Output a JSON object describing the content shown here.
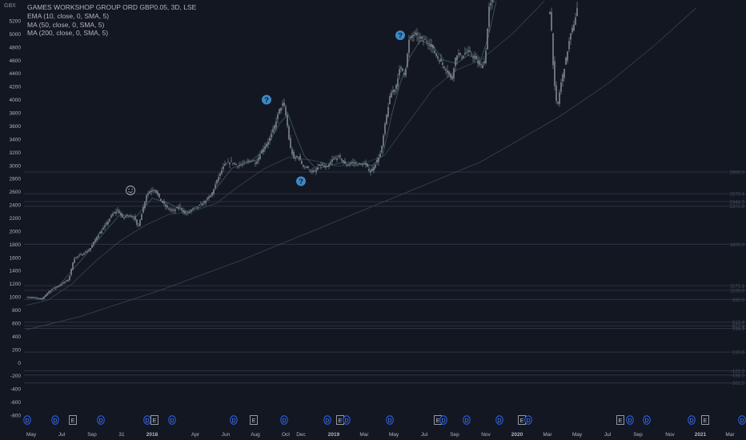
{
  "chart_data": {
    "type": "candlestick",
    "title": "GAMES WORKSHOP GROUP ORD GBP0.05, 3D, LSE",
    "currency": "GBX",
    "indicators": [
      "EMA (10, close, 0, SMA, 5)",
      "MA (50, close, 0, SMA, 5)",
      "MA (200, close, 0, SMA, 5)"
    ],
    "yticks": [
      5200,
      5000,
      4800,
      4600,
      4400,
      4200,
      4000,
      3800,
      3600,
      3400,
      3200,
      3000,
      2800,
      2600,
      2400,
      2200,
      2000,
      1800,
      1600,
      1400,
      1200,
      1000,
      800,
      600,
      400,
      200,
      0,
      -200,
      -400,
      -600,
      -800
    ],
    "ylim": [
      -900,
      5400
    ],
    "xticks": [
      {
        "label": "May",
        "px": 39
      },
      {
        "label": "Jul",
        "px": 77
      },
      {
        "label": "Sep",
        "px": 115
      },
      {
        "label": "31",
        "px": 152
      },
      {
        "label": "2018",
        "px": 190,
        "bold": true
      },
      {
        "label": "Apr",
        "px": 244
      },
      {
        "label": "Jun",
        "px": 282
      },
      {
        "label": "Aug",
        "px": 319
      },
      {
        "label": "Oct",
        "px": 357
      },
      {
        "label": "Dec",
        "px": 376
      },
      {
        "label": "2019",
        "px": 417,
        "bold": true
      },
      {
        "label": "Mar",
        "px": 455
      },
      {
        "label": "May",
        "px": 492
      },
      {
        "label": "Jul",
        "px": 530
      },
      {
        "label": "Sep",
        "px": 568
      },
      {
        "label": "Nov",
        "px": 607
      },
      {
        "label": "2020",
        "px": 646,
        "bold": true
      },
      {
        "label": "Mar",
        "px": 684
      },
      {
        "label": "May",
        "px": 721
      },
      {
        "label": "Jul",
        "px": 759
      },
      {
        "label": "Sep",
        "px": 797
      },
      {
        "label": "Nov",
        "px": 837
      },
      {
        "label": "2021",
        "px": 875,
        "bold": true
      },
      {
        "label": "Mar",
        "px": 912
      }
    ],
    "close_points": [
      [
        33,
        1000
      ],
      [
        42,
        990
      ],
      [
        52,
        960
      ],
      [
        58,
        1050
      ],
      [
        66,
        1130
      ],
      [
        75,
        1180
      ],
      [
        86,
        1270
      ],
      [
        92,
        1580
      ],
      [
        102,
        1650
      ],
      [
        112,
        1720
      ],
      [
        121,
        1920
      ],
      [
        130,
        2060
      ],
      [
        140,
        2250
      ],
      [
        147,
        2320
      ],
      [
        153,
        2200
      ],
      [
        160,
        2250
      ],
      [
        168,
        2200
      ],
      [
        172,
        2050
      ],
      [
        178,
        2320
      ],
      [
        183,
        2550
      ],
      [
        188,
        2620
      ],
      [
        193,
        2640
      ],
      [
        200,
        2480
      ],
      [
        208,
        2360
      ],
      [
        216,
        2300
      ],
      [
        224,
        2380
      ],
      [
        232,
        2250
      ],
      [
        240,
        2330
      ],
      [
        248,
        2380
      ],
      [
        256,
        2450
      ],
      [
        264,
        2550
      ],
      [
        272,
        2800
      ],
      [
        280,
        3000
      ],
      [
        288,
        3060
      ],
      [
        296,
        3000
      ],
      [
        304,
        3020
      ],
      [
        312,
        3080
      ],
      [
        320,
        3050
      ],
      [
        328,
        3250
      ],
      [
        336,
        3380
      ],
      [
        343,
        3600
      ],
      [
        349,
        3850
      ],
      [
        354,
        3950
      ],
      [
        358,
        3700
      ],
      [
        362,
        3300
      ],
      [
        367,
        3100
      ],
      [
        372,
        3150
      ],
      [
        378,
        3000
      ],
      [
        385,
        2950
      ],
      [
        392,
        2880
      ],
      [
        400,
        3020
      ],
      [
        408,
        2950
      ],
      [
        416,
        3100
      ],
      [
        424,
        3130
      ],
      [
        432,
        3000
      ],
      [
        440,
        3050
      ],
      [
        448,
        3010
      ],
      [
        456,
        3020
      ],
      [
        463,
        2900
      ],
      [
        470,
        3050
      ],
      [
        476,
        3200
      ],
      [
        482,
        3700
      ],
      [
        488,
        4100
      ],
      [
        494,
        4180
      ],
      [
        500,
        4500
      ],
      [
        506,
        4380
      ],
      [
        511,
        4900
      ],
      [
        516,
        5000
      ],
      [
        522,
        4950
      ],
      [
        528,
        4900
      ],
      [
        534,
        4900
      ],
      [
        540,
        4780
      ],
      [
        546,
        4650
      ],
      [
        552,
        4550
      ],
      [
        558,
        4450
      ],
      [
        564,
        4300
      ],
      [
        570,
        4700
      ],
      [
        576,
        4650
      ],
      [
        582,
        4720
      ],
      [
        588,
        4700
      ],
      [
        594,
        4620
      ],
      [
        600,
        4500
      ],
      [
        606,
        4600
      ],
      [
        611,
        5400
      ],
      [
        615,
        5500
      ],
      [
        680,
        5500
      ],
      [
        688,
        5300
      ],
      [
        692,
        4300
      ],
      [
        696,
        3850
      ],
      [
        700,
        4200
      ],
      [
        706,
        4550
      ],
      [
        712,
        4950
      ],
      [
        718,
        5200
      ],
      [
        722,
        5450
      ]
    ],
    "ema10_points": [
      [
        33,
        990
      ],
      [
        52,
        970
      ],
      [
        70,
        1120
      ],
      [
        90,
        1400
      ],
      [
        110,
        1680
      ],
      [
        130,
        1980
      ],
      [
        150,
        2250
      ],
      [
        170,
        2220
      ],
      [
        190,
        2500
      ],
      [
        210,
        2430
      ],
      [
        230,
        2300
      ],
      [
        250,
        2360
      ],
      [
        270,
        2650
      ],
      [
        290,
        2960
      ],
      [
        310,
        3040
      ],
      [
        330,
        3220
      ],
      [
        350,
        3650
      ],
      [
        360,
        3780
      ],
      [
        370,
        3450
      ],
      [
        380,
        3150
      ],
      [
        395,
        2950
      ],
      [
        410,
        2990
      ],
      [
        430,
        3050
      ],
      [
        450,
        3030
      ],
      [
        465,
        3000
      ],
      [
        478,
        3150
      ],
      [
        490,
        3800
      ],
      [
        500,
        4250
      ],
      [
        512,
        4650
      ],
      [
        525,
        4900
      ],
      [
        540,
        4830
      ],
      [
        555,
        4600
      ],
      [
        570,
        4550
      ],
      [
        585,
        4680
      ],
      [
        600,
        4580
      ],
      [
        610,
        4950
      ],
      [
        620,
        5500
      ]
    ],
    "ma50_points": [
      [
        33,
        870
      ],
      [
        60,
        950
      ],
      [
        90,
        1200
      ],
      [
        120,
        1550
      ],
      [
        150,
        1850
      ],
      [
        180,
        2080
      ],
      [
        210,
        2250
      ],
      [
        240,
        2300
      ],
      [
        270,
        2420
      ],
      [
        300,
        2700
      ],
      [
        330,
        2950
      ],
      [
        360,
        3120
      ],
      [
        390,
        3080
      ],
      [
        420,
        2990
      ],
      [
        450,
        3010
      ],
      [
        480,
        3150
      ],
      [
        510,
        3650
      ],
      [
        540,
        4150
      ],
      [
        570,
        4450
      ],
      [
        600,
        4600
      ],
      [
        640,
        5000
      ],
      [
        680,
        5500
      ]
    ],
    "ma200_points": [
      [
        33,
        500
      ],
      [
        100,
        700
      ],
      [
        200,
        1100
      ],
      [
        300,
        1550
      ],
      [
        400,
        2050
      ],
      [
        500,
        2550
      ],
      [
        600,
        3050
      ],
      [
        700,
        3750
      ],
      [
        760,
        4250
      ],
      [
        820,
        4850
      ],
      [
        870,
        5400
      ]
    ],
    "levels": [
      {
        "value": 2900,
        "tag": "2900.0"
      },
      {
        "value": 2570,
        "tag": "2570.4"
      },
      {
        "value": 2450,
        "tag": "2444.3"
      },
      {
        "value": 2380,
        "tag": "2372.9"
      },
      {
        "value": 1800,
        "tag": "1800.0"
      },
      {
        "value": 1170,
        "tag": "1171.1"
      },
      {
        "value": 1100,
        "tag": "1100.0"
      },
      {
        "value": 960,
        "tag": "960.0"
      },
      {
        "value": 615,
        "tag": "615.4"
      },
      {
        "value": 560,
        "tag": "557.9"
      },
      {
        "value": 520,
        "tag": "514.3"
      },
      {
        "value": 160,
        "tag": "160.6"
      },
      {
        "value": -125,
        "tag": "-125.3"
      },
      {
        "value": -190,
        "tag": "-188.0"
      },
      {
        "value": -310,
        "tag": "-302.5"
      }
    ],
    "events": [
      {
        "type": "D",
        "px": 34
      },
      {
        "type": "D",
        "px": 69
      },
      {
        "type": "E",
        "px": 91
      },
      {
        "type": "D",
        "px": 126
      },
      {
        "type": "D",
        "px": 184
      },
      {
        "type": "E",
        "px": 193
      },
      {
        "type": "D",
        "px": 215
      },
      {
        "type": "D",
        "px": 292
      },
      {
        "type": "E",
        "px": 317
      },
      {
        "type": "D",
        "px": 355
      },
      {
        "type": "D",
        "px": 409
      },
      {
        "type": "E",
        "px": 425
      },
      {
        "type": "D",
        "px": 433
      },
      {
        "type": "D",
        "px": 487
      },
      {
        "type": "E",
        "px": 547
      },
      {
        "type": "D",
        "px": 554
      },
      {
        "type": "D",
        "px": 583
      },
      {
        "type": "D",
        "px": 624
      },
      {
        "type": "E",
        "px": 652
      },
      {
        "type": "D",
        "px": 660
      },
      {
        "type": "E",
        "px": 775
      },
      {
        "type": "D",
        "px": 787
      },
      {
        "type": "D",
        "px": 808
      },
      {
        "type": "D",
        "px": 864
      },
      {
        "type": "E",
        "px": 881
      },
      {
        "type": "D",
        "px": 927
      }
    ],
    "markers": [
      {
        "icon": "smiley-icon",
        "x": 163,
        "y": 2620
      },
      {
        "icon": "question-icon",
        "x": 333,
        "y": 4000
      },
      {
        "icon": "question-icon",
        "x": 376,
        "y": 2760
      },
      {
        "icon": "question-icon",
        "x": 500,
        "y": 4980
      }
    ]
  }
}
